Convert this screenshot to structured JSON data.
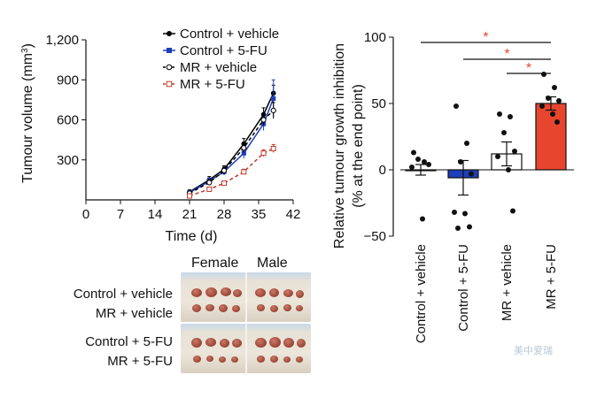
{
  "chart_data": [
    {
      "type": "line",
      "title": "",
      "xlabel": "Time (d)",
      "ylabel_main": "Tumour volume (mm",
      "ylabel_sup": "3",
      "ylabel_close": ")",
      "xlim": [
        0,
        42
      ],
      "ylim": [
        0,
        1200
      ],
      "xticks": [
        0,
        7,
        14,
        21,
        28,
        35,
        42
      ],
      "xtick_labels": [
        "0",
        "7",
        "14",
        "21",
        "28",
        "35",
        "42"
      ],
      "yticks": [
        300,
        600,
        900,
        1200
      ],
      "ytick_labels": [
        "300",
        "600",
        "900",
        "1,200"
      ],
      "x": [
        21,
        25,
        28,
        32,
        36,
        38
      ],
      "legend_position": "top-right",
      "series": [
        {
          "name": "Control + vehicle",
          "color": "#000000",
          "dash": "solid",
          "marker": "filled",
          "values": [
            60,
            150,
            230,
            420,
            640,
            800
          ],
          "errors": [
            15,
            25,
            25,
            40,
            50,
            60
          ]
        },
        {
          "name": "Control + 5-FU",
          "color": "#1f3fb8",
          "dash": "solid",
          "marker": "square",
          "values": [
            55,
            140,
            210,
            350,
            570,
            760
          ],
          "errors": [
            15,
            25,
            25,
            40,
            50,
            140
          ]
        },
        {
          "name": "MR + vehicle",
          "color": "#000000",
          "dash": "dashed",
          "marker": "open",
          "values": [
            50,
            130,
            220,
            390,
            600,
            670
          ],
          "errors": [
            12,
            20,
            25,
            35,
            40,
            60
          ]
        },
        {
          "name": "MR + 5-FU",
          "color": "#c0392b",
          "dash": "dashed",
          "marker": "opensquare",
          "values": [
            30,
            80,
            125,
            210,
            350,
            385
          ],
          "errors": [
            8,
            12,
            15,
            20,
            25,
            30
          ]
        }
      ]
    },
    {
      "type": "bar",
      "title": "",
      "ylabel_line1": "Relative tumour growth inhibition",
      "ylabel_line2": "(% at the end point)",
      "ylim": [
        -50,
        100
      ],
      "yticks": [
        -50,
        0,
        50,
        100
      ],
      "ytick_labels": [
        "−50",
        "0",
        "50",
        "100"
      ],
      "categories": [
        "Control + vehicle",
        "Control + 5-FU",
        "MR + vehicle",
        "MR + 5-FU"
      ],
      "values": [
        0,
        -6,
        12,
        50
      ],
      "errors": [
        4,
        13,
        9,
        5
      ],
      "fills": [
        "#ffffff",
        "#1f3fb8",
        "#ffffff",
        "#e8452f"
      ],
      "points": [
        [
          13,
          6,
          8,
          4,
          2,
          -37
        ],
        [
          48,
          20,
          6,
          -3,
          -32,
          -33,
          -43,
          -44
        ],
        [
          42,
          40,
          28,
          14,
          10,
          0,
          -31
        ],
        [
          72,
          62,
          54,
          52,
          48,
          42,
          36
        ]
      ],
      "significance": [
        {
          "from": 0,
          "to": 3,
          "label": "*"
        },
        {
          "from": 1,
          "to": 3,
          "label": "*"
        },
        {
          "from": 2,
          "to": 3,
          "label": "*"
        }
      ],
      "significance_color": "#e8452f"
    }
  ],
  "photo_panel": {
    "column_labels": [
      "Female",
      "Male"
    ],
    "row_labels": [
      "Control + vehicle",
      "MR + vehicle",
      "Control + 5-FU",
      "MR + 5-FU"
    ]
  },
  "watermark": "美中爱瑞"
}
